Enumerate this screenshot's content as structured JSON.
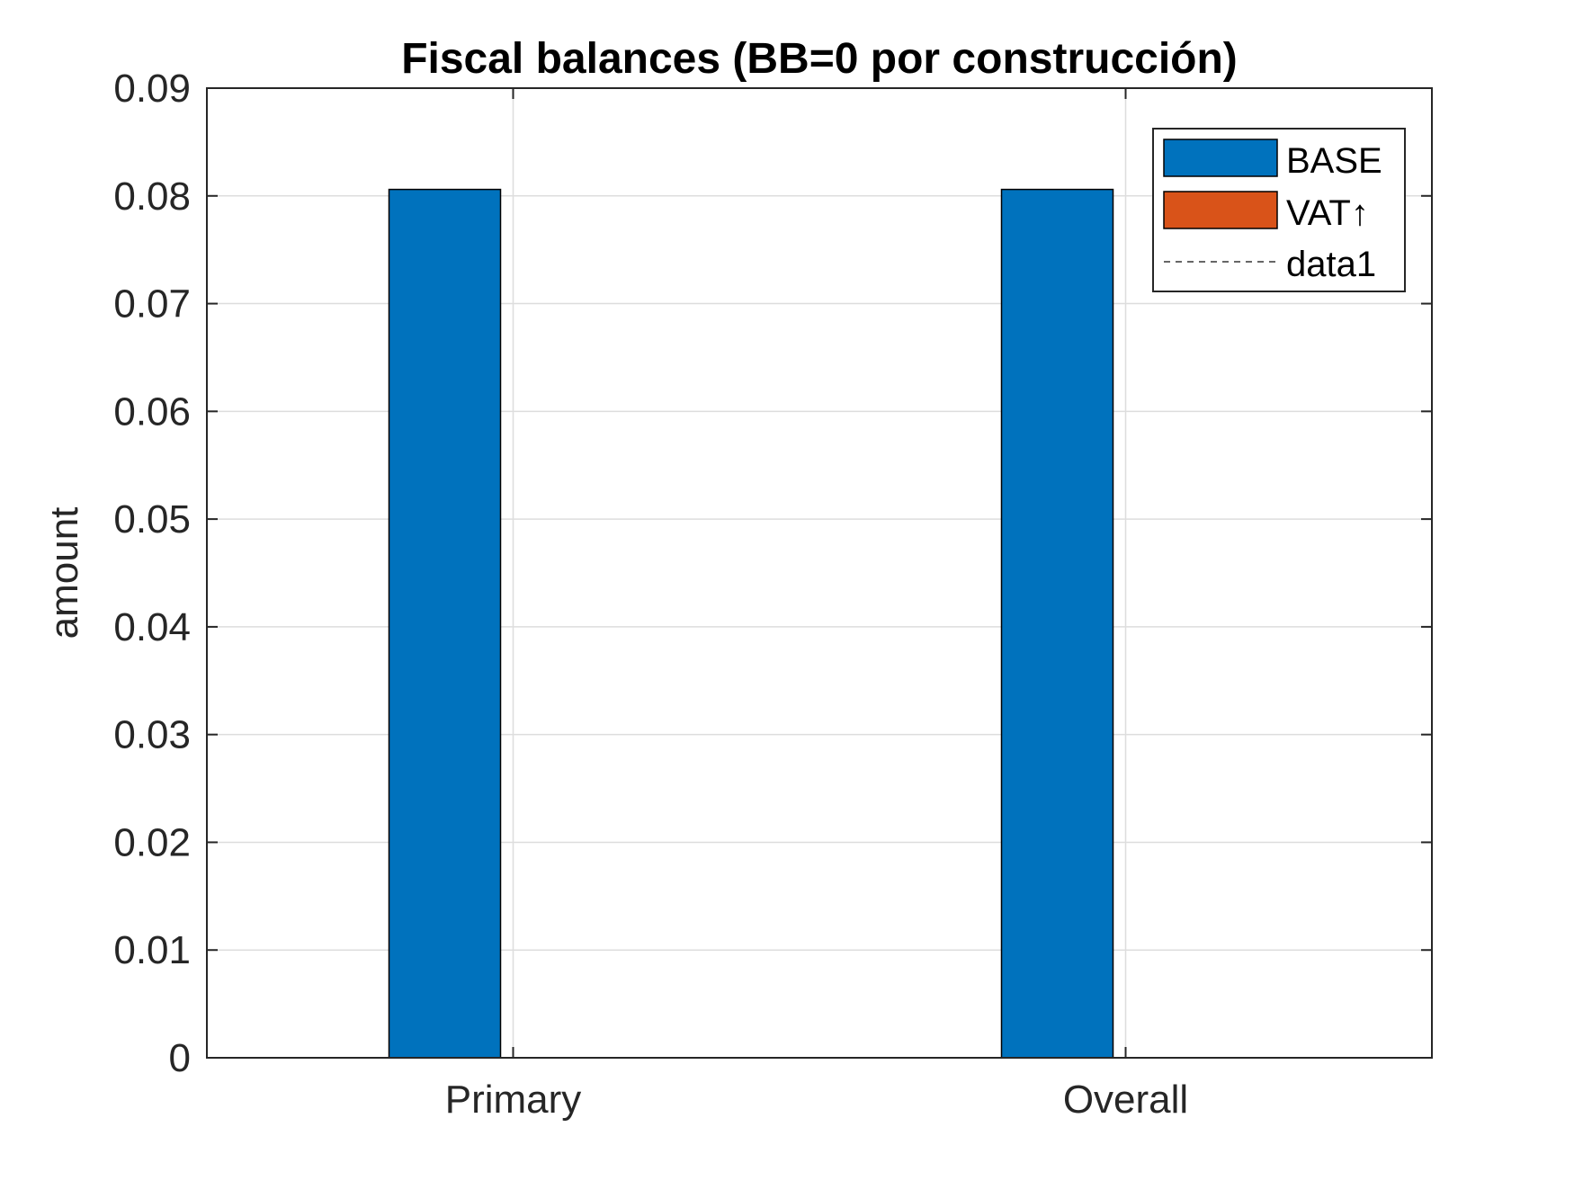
{
  "chart_data": {
    "type": "bar",
    "title": "Fiscal balances (BB=0 por construcción)",
    "xlabel": "",
    "ylabel": "amount",
    "categories": [
      "Primary",
      "Overall"
    ],
    "series": [
      {
        "name": "BASE",
        "values": [
          0.0806,
          0.0806
        ],
        "color": "#0072BD"
      },
      {
        "name": "VAT↑",
        "values": [
          0,
          0
        ],
        "color": "#D95319"
      }
    ],
    "reference_line": {
      "name": "data1",
      "value": 0,
      "style": "dashed",
      "color": "#666666"
    },
    "ylim": [
      0,
      0.09
    ],
    "yticks": [
      "0",
      "0.01",
      "0.02",
      "0.03",
      "0.04",
      "0.05",
      "0.06",
      "0.07",
      "0.08",
      "0.09"
    ],
    "grid": true,
    "legend_position": "top-right"
  }
}
